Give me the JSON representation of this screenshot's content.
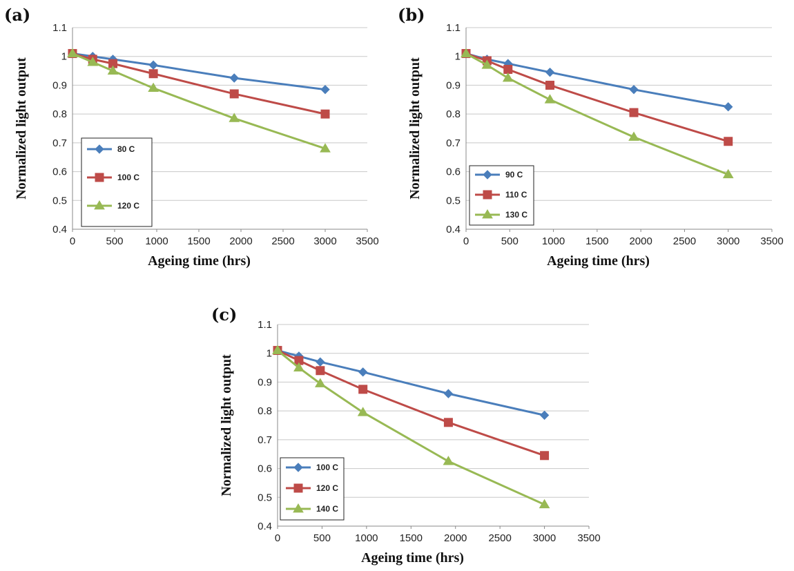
{
  "chart_data": [
    {
      "panel": "(a)",
      "type": "line",
      "xlabel": "Ageing time (hrs)",
      "ylabel": "Normalized light output",
      "xlim": [
        0,
        3500
      ],
      "ylim": [
        0.4,
        1.1
      ],
      "xticks": [
        "0",
        "500",
        "1000",
        "1500",
        "2000",
        "2500",
        "3000",
        "3500"
      ],
      "yticks": [
        "0.4",
        "0.5",
        "0.6",
        "0.7",
        "0.8",
        "0.9",
        "1",
        "1.1"
      ],
      "grid": "horizontal",
      "legend_position": "lower-left",
      "x": [
        0,
        240,
        480,
        960,
        1920,
        3000
      ],
      "series": [
        {
          "name": "80 C",
          "marker": "diamond",
          "color": "#4a7ebb",
          "values": [
            1.01,
            1.0,
            0.99,
            0.97,
            0.925,
            0.885
          ]
        },
        {
          "name": "100 C",
          "marker": "square",
          "color": "#be4b48",
          "values": [
            1.01,
            0.99,
            0.975,
            0.94,
            0.87,
            0.8
          ]
        },
        {
          "name": "120 C",
          "marker": "triangle",
          "color": "#98b954",
          "values": [
            1.01,
            0.98,
            0.95,
            0.89,
            0.785,
            0.68
          ]
        }
      ]
    },
    {
      "panel": "(b)",
      "type": "line",
      "xlabel": "Ageing time (hrs)",
      "ylabel": "Normalized light output",
      "xlim": [
        0,
        3500
      ],
      "ylim": [
        0.4,
        1.1
      ],
      "xticks": [
        "0",
        "500",
        "1000",
        "1500",
        "2000",
        "2500",
        "3000",
        "3500"
      ],
      "yticks": [
        "0.4",
        "0.5",
        "0.6",
        "0.7",
        "0.8",
        "0.9",
        "1",
        "1.1"
      ],
      "grid": "horizontal",
      "legend_position": "lower-left",
      "x": [
        0,
        240,
        480,
        960,
        1920,
        3000
      ],
      "series": [
        {
          "name": "90 C",
          "marker": "diamond",
          "color": "#4a7ebb",
          "values": [
            1.01,
            0.99,
            0.975,
            0.945,
            0.885,
            0.825
          ]
        },
        {
          "name": "110 C",
          "marker": "square",
          "color": "#be4b48",
          "values": [
            1.01,
            0.985,
            0.955,
            0.9,
            0.805,
            0.705
          ]
        },
        {
          "name": "130 C",
          "marker": "triangle",
          "color": "#98b954",
          "values": [
            1.01,
            0.97,
            0.925,
            0.85,
            0.72,
            0.59
          ]
        }
      ]
    },
    {
      "panel": "(c)",
      "type": "line",
      "xlabel": "Ageing time (hrs)",
      "ylabel": "Normalized light output",
      "xlim": [
        0,
        3500
      ],
      "ylim": [
        0.4,
        1.1
      ],
      "xticks": [
        "0",
        "500",
        "1000",
        "1500",
        "2000",
        "2500",
        "3000",
        "3500"
      ],
      "yticks": [
        "0.4",
        "0.5",
        "0.6",
        "0.7",
        "0.8",
        "0.9",
        "1",
        "1.1"
      ],
      "grid": "horizontal",
      "legend_position": "lower-left",
      "x": [
        0,
        240,
        480,
        960,
        1920,
        3000
      ],
      "series": [
        {
          "name": "100 C",
          "marker": "diamond",
          "color": "#4a7ebb",
          "values": [
            1.01,
            0.99,
            0.97,
            0.935,
            0.86,
            0.785
          ]
        },
        {
          "name": "120 C",
          "marker": "square",
          "color": "#be4b48",
          "values": [
            1.01,
            0.975,
            0.94,
            0.875,
            0.76,
            0.645
          ]
        },
        {
          "name": "140 C",
          "marker": "triangle",
          "color": "#98b954",
          "values": [
            1.01,
            0.95,
            0.895,
            0.795,
            0.625,
            0.475
          ]
        }
      ]
    }
  ]
}
